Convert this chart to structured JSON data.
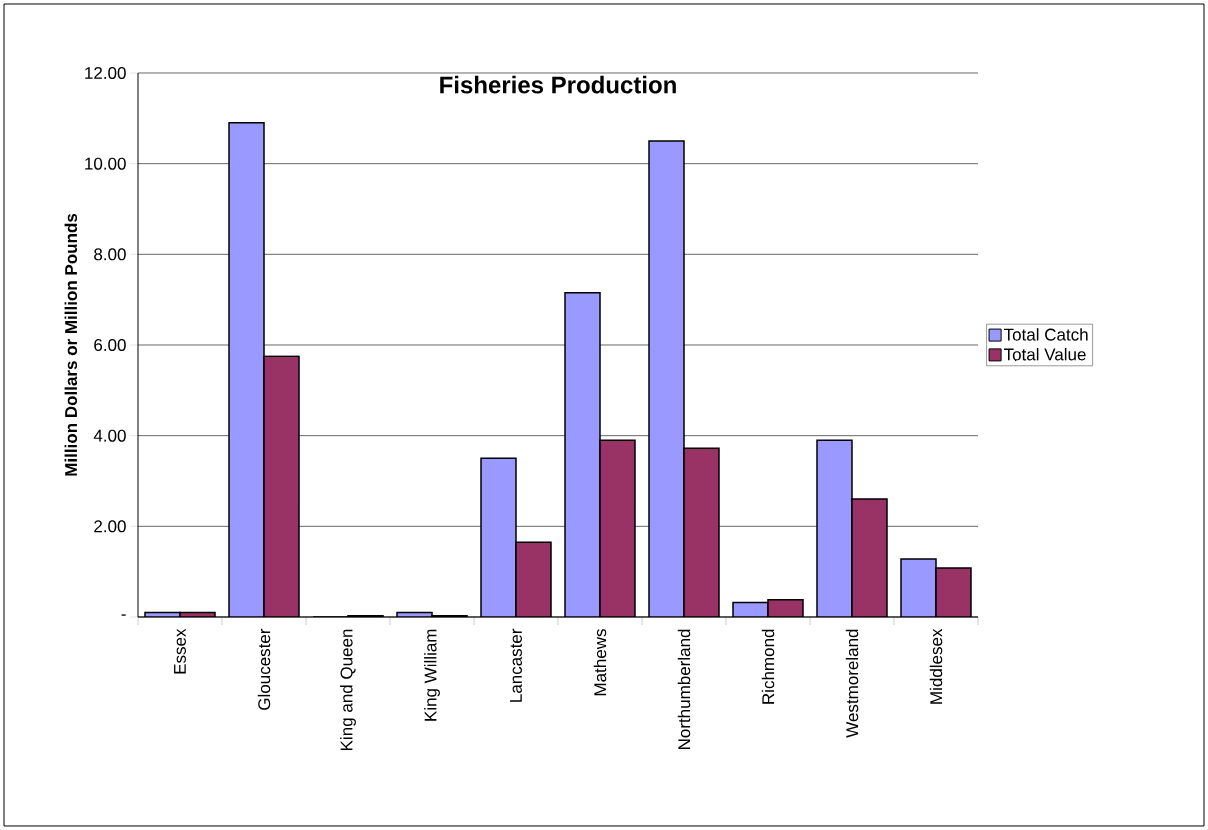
{
  "chart_data": {
    "type": "bar",
    "title": "Fisheries Production",
    "ylabel": "Million  Dollars  or  Million  Pounds",
    "categories": [
      "Essex",
      "Gloucester",
      "King and Queen",
      "King William",
      "Lancaster",
      "Mathews",
      "Northumberland",
      "Richmond",
      "Westmoreland",
      "Middlesex"
    ],
    "series": [
      {
        "name": "Total Catch",
        "color": "#9999ff",
        "values": [
          0.1,
          10.9,
          0,
          0.1,
          3.5,
          7.15,
          10.5,
          0.32,
          3.9,
          1.28
        ]
      },
      {
        "name": "Total Value",
        "color": "#993366",
        "values": [
          0.1,
          5.75,
          0.03,
          0.03,
          1.65,
          3.9,
          3.72,
          0.38,
          2.6,
          1.08
        ]
      }
    ],
    "ylim": [
      0,
      12
    ],
    "yticks": [
      {
        "value": 0,
        "label": "-"
      },
      {
        "value": 2,
        "label": "2.00"
      },
      {
        "value": 4,
        "label": "4.00"
      },
      {
        "value": 6,
        "label": "6.00"
      },
      {
        "value": 8,
        "label": "8.00"
      },
      {
        "value": 10,
        "label": "10.00"
      },
      {
        "value": 12,
        "label": "12.00"
      }
    ],
    "grid": "y",
    "legend": "right"
  }
}
